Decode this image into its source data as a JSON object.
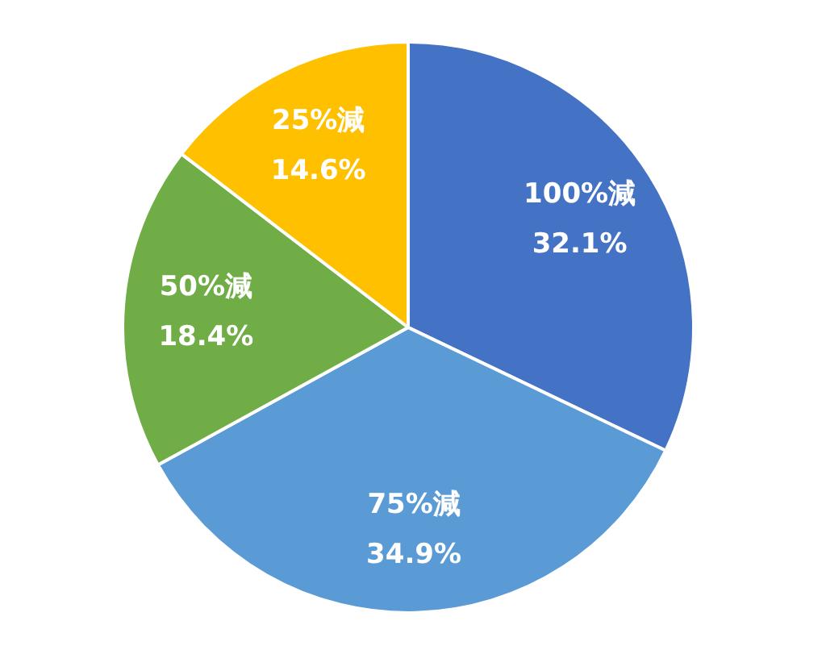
{
  "chart_data": {
    "type": "pie",
    "categories": [
      "100%減",
      "75%減",
      "50%減",
      "25%減"
    ],
    "values": [
      32.1,
      34.9,
      18.4,
      14.6
    ],
    "value_labels": [
      "32.1%",
      "34.9%",
      "18.4%",
      "14.6%"
    ],
    "colors": [
      "#4472c4",
      "#5b9bd5",
      "#70ad47",
      "#ffc000"
    ],
    "legend": false
  }
}
